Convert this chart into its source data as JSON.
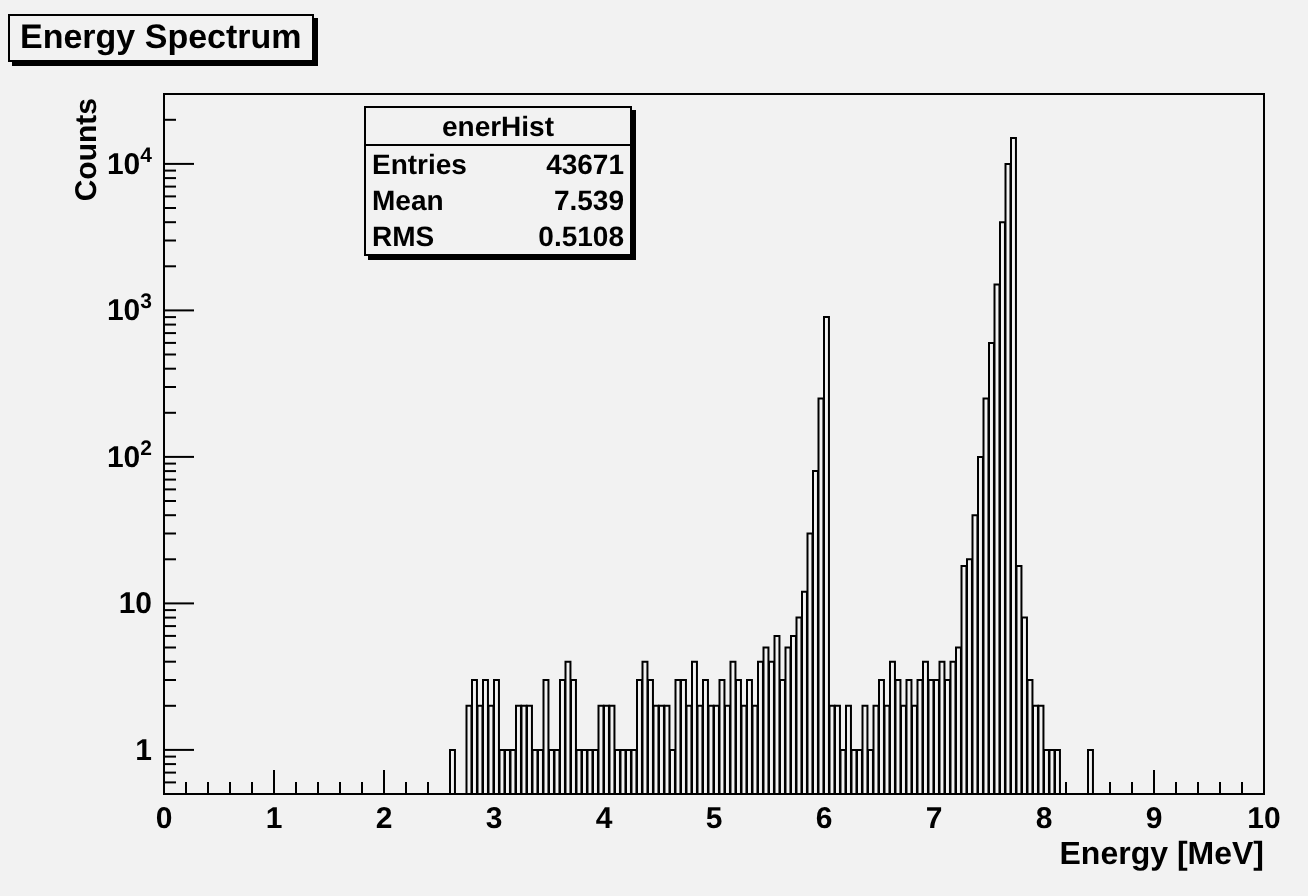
{
  "chart_data": {
    "type": "histogram",
    "title": "Energy Spectrum",
    "xlabel": "Energy [MeV]",
    "ylabel": "Counts",
    "color": "#000000",
    "log": "y",
    "annotations": [
      "enerHist",
      "Entries 43671",
      "Mean 7.539",
      "RMS 0.5108"
    ],
    "xlim": [
      0,
      10
    ],
    "ylim": [
      0.5,
      30000
    ],
    "xticks": [
      0,
      {
        "value": 0.2,
        "label": null
      },
      {
        "value": 0.4,
        "label": null
      },
      {
        "value": 0.6,
        "label": null
      },
      {
        "value": 0.8,
        "label": null
      },
      1,
      {
        "value": 1.2,
        "label": null
      },
      {
        "value": 1.4,
        "label": null
      },
      {
        "value": 1.6,
        "label": null
      },
      {
        "value": 1.8,
        "label": null
      },
      2,
      {
        "value": 2.2,
        "label": null
      },
      {
        "value": 2.4,
        "label": null
      },
      {
        "value": 2.6,
        "label": null
      },
      {
        "value": 2.8,
        "label": null
      },
      3,
      {
        "value": 3.2,
        "label": null
      },
      {
        "value": 3.4,
        "label": null
      },
      {
        "value": 3.6,
        "label": null
      },
      {
        "value": 3.8,
        "label": null
      },
      4,
      {
        "value": 4.2,
        "label": null
      },
      {
        "value": 4.4,
        "label": null
      },
      {
        "value": 4.6,
        "label": null
      },
      {
        "value": 4.8,
        "label": null
      },
      5,
      {
        "value": 5.2,
        "label": null
      },
      {
        "value": 5.4,
        "label": null
      },
      {
        "value": 5.6,
        "label": null
      },
      {
        "value": 5.8,
        "label": null
      },
      6,
      {
        "value": 6.2,
        "label": null
      },
      {
        "value": 6.4,
        "label": null
      },
      {
        "value": 6.6,
        "label": null
      },
      {
        "value": 6.8,
        "label": null
      },
      7,
      {
        "value": 7.2,
        "label": null
      },
      {
        "value": 7.4,
        "label": null
      },
      {
        "value": 7.6,
        "label": null
      },
      {
        "value": 7.8,
        "label": null
      },
      8,
      {
        "value": 8.2,
        "label": null
      },
      {
        "value": 8.4,
        "label": null
      },
      {
        "value": 8.6,
        "label": null
      },
      {
        "value": 8.8,
        "label": null
      },
      9,
      {
        "value": 9.2,
        "label": null
      },
      {
        "value": 9.4,
        "label": null
      },
      {
        "value": 9.6,
        "label": null
      },
      {
        "value": 9.8,
        "label": null
      },
      10
    ],
    "yticks": [
      {
        "value": 0.6,
        "label": null
      },
      {
        "value": 0.7,
        "label": null
      },
      {
        "value": 0.8,
        "label": null
      },
      {
        "value": 0.9,
        "label": null
      },
      1,
      {
        "value": 2,
        "label": null
      },
      {
        "value": 3,
        "label": null
      },
      {
        "value": 4,
        "label": null
      },
      {
        "value": 5,
        "label": null
      },
      {
        "value": 6,
        "label": null
      },
      {
        "value": 7,
        "label": null
      },
      {
        "value": 8,
        "label": null
      },
      {
        "value": 9,
        "label": null
      },
      10,
      {
        "value": 20,
        "label": null
      },
      {
        "value": 30,
        "label": null
      },
      {
        "value": 40,
        "label": null
      },
      {
        "value": 50,
        "label": null
      },
      {
        "value": 60,
        "label": null
      },
      {
        "value": 70,
        "label": null
      },
      {
        "value": 80,
        "label": null
      },
      {
        "value": 90,
        "label": null
      },
      {
        "value": 100,
        "label": "10$^{2}$"
      },
      {
        "value": 200,
        "label": null
      },
      {
        "value": 300,
        "label": null
      },
      {
        "value": 400,
        "label": null
      },
      {
        "value": 500,
        "label": null
      },
      {
        "value": 600,
        "label": null
      },
      {
        "value": 700,
        "label": null
      },
      {
        "value": 800,
        "label": null
      },
      {
        "value": 900,
        "label": null
      },
      {
        "value": 1000,
        "label": "10$^{3}$"
      },
      {
        "value": 2000,
        "label": null
      },
      {
        "value": 3000,
        "label": null
      },
      {
        "value": 4000,
        "label": null
      },
      {
        "value": 5000,
        "label": null
      },
      {
        "value": 6000,
        "label": null
      },
      {
        "value": 7000,
        "label": null
      },
      {
        "value": 8000,
        "label": null
      },
      {
        "value": 9000,
        "label": null
      },
      {
        "value": 10000,
        "label": "10$^{4}$"
      },
      {
        "value": 20000,
        "label": null
      }
    ],
    "bins": [
      0,
      0.05,
      0.1,
      0.15,
      0.2,
      0.25,
      0.3,
      0.35,
      0.4,
      0.45,
      0.5,
      0.55,
      0.6,
      0.65,
      0.7,
      0.75,
      0.8,
      0.85,
      0.9,
      0.95,
      1,
      1.05,
      1.1,
      1.15,
      1.2,
      1.25,
      1.3,
      1.35,
      1.4,
      1.45,
      1.5,
      1.55,
      1.6,
      1.65,
      1.7,
      1.75,
      1.8,
      1.85,
      1.9,
      1.95,
      2,
      2.05,
      2.1,
      2.15,
      2.2,
      2.25,
      2.3,
      2.35,
      2.4,
      2.45,
      2.5,
      2.55,
      2.6,
      2.65,
      2.7,
      2.75,
      2.8,
      2.85,
      2.9,
      2.95,
      3,
      3.05,
      3.1,
      3.15,
      3.2,
      3.25,
      3.3,
      3.35,
      3.4,
      3.45,
      3.5,
      3.55,
      3.6,
      3.65,
      3.7,
      3.75,
      3.8,
      3.85,
      3.9,
      3.95,
      4,
      4.05,
      4.1,
      4.15,
      4.2,
      4.25,
      4.3,
      4.35,
      4.4,
      4.45,
      4.5,
      4.55,
      4.6,
      4.65,
      4.7,
      4.75,
      4.8,
      4.85,
      4.9,
      4.95,
      5,
      5.05,
      5.1,
      5.15,
      5.2,
      5.25,
      5.3,
      5.35,
      5.4,
      5.45,
      5.5,
      5.55,
      5.6,
      5.65,
      5.7,
      5.75,
      5.8,
      5.85,
      5.9,
      5.95,
      6,
      6.05,
      6.1,
      6.15,
      6.2,
      6.25,
      6.3,
      6.35,
      6.4,
      6.45,
      6.5,
      6.55,
      6.6,
      6.65,
      6.7,
      6.75,
      6.8,
      6.85,
      6.9,
      6.95,
      7,
      7.05,
      7.1,
      7.15,
      7.2,
      7.25,
      7.3,
      7.35,
      7.4,
      7.45,
      7.5,
      7.55,
      7.6,
      7.65,
      7.7,
      7.75,
      7.8,
      7.85,
      7.9,
      7.95,
      8,
      8.05,
      8.1,
      8.15,
      8.2,
      8.25,
      8.3,
      8.35,
      8.4,
      8.45,
      8.5,
      8.55,
      8.6,
      8.65,
      8.7,
      8.75,
      8.8,
      8.85,
      8.9,
      8.95,
      9,
      9.05,
      9.1,
      9.15,
      9.2,
      9.25,
      9.3,
      9.35,
      9.4,
      9.45,
      9.5,
      9.55,
      9.6,
      9.65,
      9.7,
      9.75,
      9.8,
      9.85,
      9.9,
      9.95,
      10
    ],
    "values": [
      null,
      null,
      null,
      null,
      null,
      null,
      null,
      null,
      null,
      null,
      null,
      null,
      null,
      null,
      null,
      null,
      null,
      null,
      null,
      null,
      null,
      null,
      null,
      null,
      null,
      null,
      null,
      null,
      null,
      null,
      null,
      null,
      null,
      null,
      null,
      null,
      null,
      null,
      null,
      null,
      null,
      null,
      null,
      null,
      null,
      null,
      null,
      null,
      null,
      null,
      null,
      null,
      1,
      null,
      null,
      2,
      3,
      2,
      3,
      2,
      3,
      1,
      1,
      1,
      2,
      2,
      2,
      1,
      1,
      3,
      1,
      1,
      3,
      4,
      3,
      1,
      1,
      1,
      1,
      2,
      2,
      2,
      1,
      1,
      1,
      1,
      3,
      4,
      3,
      2,
      2,
      2,
      1,
      3,
      3,
      2,
      4,
      2,
      3,
      2,
      2,
      3,
      2,
      4,
      3,
      2,
      3,
      2,
      4,
      5,
      4,
      6,
      3,
      5,
      6,
      8,
      12,
      30,
      80,
      250,
      900,
      2,
      2,
      1,
      2,
      1,
      1,
      2,
      1,
      2,
      3,
      2,
      4,
      3,
      2,
      3,
      2,
      3,
      4,
      3,
      3,
      4,
      3,
      4,
      5,
      18,
      20,
      40,
      100,
      250,
      600,
      1500,
      4000,
      10000,
      15000,
      18,
      8,
      3,
      2,
      2,
      1,
      1,
      1,
      null,
      null,
      null,
      null,
      null,
      1,
      null,
      null,
      null,
      null,
      null,
      null,
      null,
      null,
      null,
      null,
      null,
      null,
      null,
      null,
      null,
      null,
      null,
      null,
      null,
      null,
      null,
      null,
      null,
      null,
      null,
      null,
      null,
      null,
      null,
      null,
      null
    ]
  }
}
